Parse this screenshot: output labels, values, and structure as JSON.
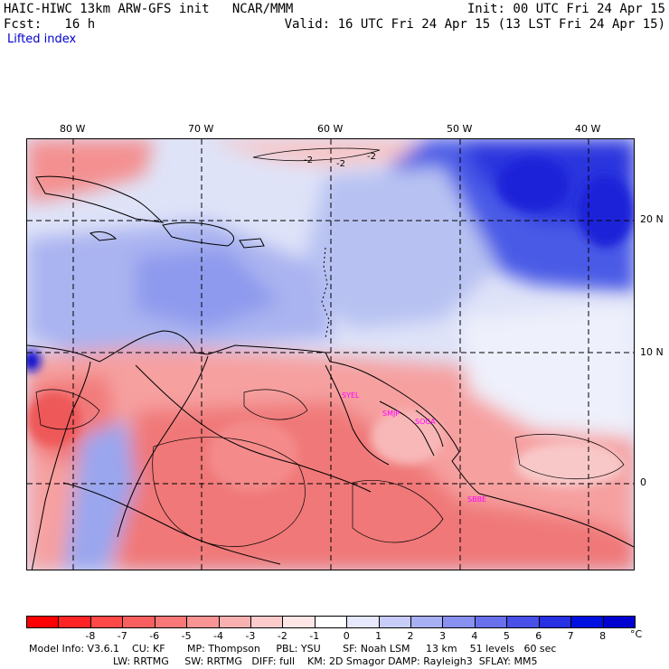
{
  "header": {
    "model_title": "HAIC-HIWC 13km ARW-GFS init   NCAR/MMM",
    "init_time": "Init: 00 UTC Fri 24 Apr 15",
    "forecast_label": "Fcst:   16 h",
    "valid_time": "Valid: 16 UTC Fri 24 Apr 15 (13 LST Fri 24 Apr 15)",
    "field_name": "Lifted index"
  },
  "map": {
    "longitude_labels": [
      "80 W",
      "70 W",
      "60 W",
      "50 W",
      "40 W"
    ],
    "latitude_labels": [
      "20 N",
      "10 N",
      "0"
    ],
    "contour_labels": [
      "-2",
      "-2",
      "-2"
    ],
    "station_labels": [
      "SYEL",
      "SMJP",
      "SOCA",
      "SBBE"
    ],
    "colors": {
      "positive_strong": "#2030e8",
      "positive_light": "#c8d2f4",
      "neutral": "#ffffff",
      "negative_light": "#f8c8c8",
      "negative_strong": "#f04040"
    }
  },
  "colorbar": {
    "tick_labels": [
      "-8",
      "-7",
      "-6",
      "-5",
      "-4",
      "-3",
      "-2",
      "-1",
      "0",
      "1",
      "2",
      "3",
      "4",
      "5",
      "6",
      "7",
      "8"
    ],
    "unit": "°C",
    "colors": [
      "#ff0000",
      "#ff2424",
      "#ff4848",
      "#f86060",
      "#f87878",
      "#f89494",
      "#f8b0b0",
      "#fccccc",
      "#ffe6e6",
      "#ffffff",
      "#e6e8fc",
      "#c8ccf8",
      "#a8b0f4",
      "#8890f0",
      "#6870ec",
      "#4850e8",
      "#2830e4",
      "#0010e0",
      "#0000d0"
    ]
  },
  "footer": {
    "line1": "Model Info: V3.6.1    CU: KF       MP: Thompson     PBL: YSU       SF: Noah LSM     13 km    51 levels   60 sec",
    "line2": "LW: RRTMG     SW: RRTMG   DIFF: full    KM: 2D Smagor DAMP: Rayleigh3  SFLAY: MM5"
  }
}
